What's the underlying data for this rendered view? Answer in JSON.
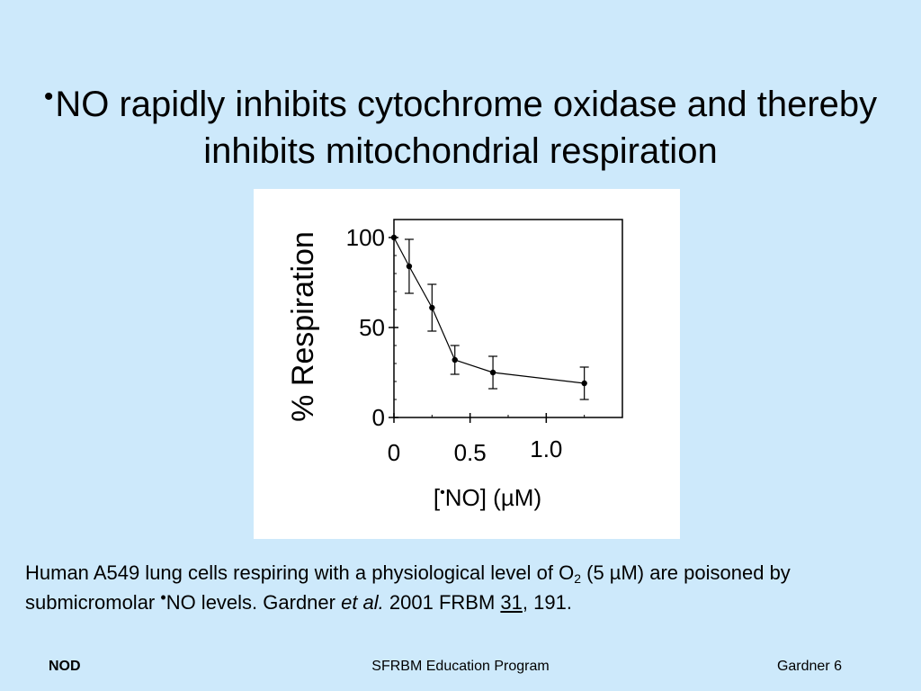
{
  "slide": {
    "title_radical": "•",
    "title_text": "NO rapidly inhibits cytochrome oxidase and thereby inhibits mitochondrial respiration"
  },
  "caption": {
    "part1": "Human A549 lung cells respiring with a physiological level of O",
    "o2_sub": "2",
    "part2": " (5 µM) are poisoned by submicromolar ",
    "radical": "•",
    "part3": "NO levels.  Gardner ",
    "etal": "et al.",
    "part4": " 2001 FRBM ",
    "volume": "31",
    "part5": ", 191."
  },
  "footer": {
    "left": "NOD",
    "center": "SFRBM Education Program",
    "right": "Gardner 6"
  },
  "chart_data": {
    "type": "line",
    "x": [
      0,
      0.1,
      0.25,
      0.4,
      0.65,
      1.25
    ],
    "y": [
      100,
      84,
      61,
      32,
      25,
      19
    ],
    "y_err": [
      0,
      15,
      13,
      8,
      9,
      9
    ],
    "xlim": [
      0,
      1.5
    ],
    "ylim": [
      0,
      110
    ],
    "x_ticks": [
      {
        "value": 0,
        "label": "0"
      },
      {
        "value": 0.5,
        "label": "0.5"
      },
      {
        "value": 1.0,
        "label": "1.0"
      }
    ],
    "y_ticks": [
      {
        "value": 0,
        "label": "0"
      },
      {
        "value": 50,
        "label": "50"
      },
      {
        "value": 100,
        "label": "100"
      }
    ],
    "xlabel_prefix": "[",
    "xlabel_radical": "•",
    "xlabel_rest": "NO] (µM)",
    "ylabel": "% Respiration",
    "grid": false,
    "colors": {
      "line": "#000000",
      "marker": "#000000",
      "axes": "#000000"
    }
  }
}
